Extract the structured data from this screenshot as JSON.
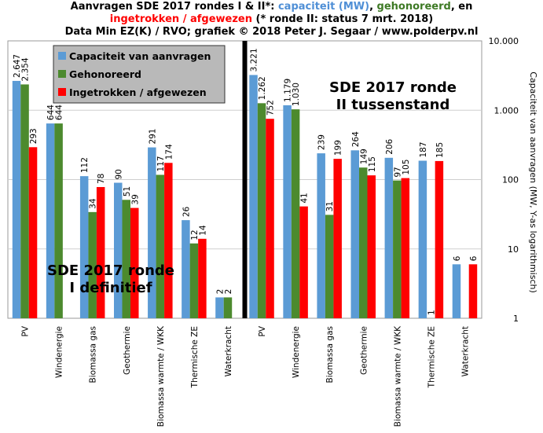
{
  "title": {
    "line1_a": "Aanvragen SDE 2017 rondes I & II*: ",
    "line1_capacity": "capaciteit (MW)",
    "line1_sep1": ", ",
    "line1_awarded": "gehonoreerd",
    "line1_sep2": ", en",
    "line2_withdrawn": "ingetrokken  / afgewezen",
    "line2_note": " (* ronde II: status 7 mrt. 2018)",
    "line3": "Data Min EZ(K) / RVO; grafiek © 2018 Peter J. Segaar / www.polderpv.nl"
  },
  "colors": {
    "capacity": "#5b9bd5",
    "awarded": "#4c8a2e",
    "withdrawn": "#ff0000",
    "legend_bg": "#b9b9b9",
    "legend_border": "#333333"
  },
  "chart_data": {
    "type": "bar",
    "y_scale": "log",
    "ylim": [
      1,
      10000
    ],
    "ylabel": "Capaciteit van aanvragen (MW, Y-as logarithmisch)",
    "y_ticks": [
      1,
      10,
      100,
      1000,
      10000
    ],
    "y_tick_labels": [
      "1",
      "10",
      "100",
      "1.000",
      "10.000"
    ],
    "legend": [
      "Capaciteit van aanvragen",
      "Gehonoreerd",
      "Ingetrokken / afgewezen"
    ],
    "legend_position": "top-left",
    "annotations": [
      "SDE 2017 ronde I definitief",
      "SDE 2017 ronde II tussenstand"
    ],
    "groups": [
      {
        "round": "I",
        "annotation_line1": "SDE 2017 ronde",
        "annotation_line2": "I definitief",
        "categories": [
          "PV",
          "Windenergie",
          "Biomassa gas",
          "Geothermie",
          "Biomassa warmte / WKK",
          "Thermische ZE",
          "Waterkracht"
        ],
        "series": [
          {
            "name": "Capaciteit van aanvragen",
            "values": [
              2647,
              644,
              112,
              90,
              291,
              26,
              2
            ],
            "labels": [
              "2.647",
              "644",
              "112",
              "90",
              "291",
              "26",
              "2"
            ]
          },
          {
            "name": "Gehonoreerd",
            "values": [
              2354,
              644,
              34,
              51,
              117,
              12,
              2
            ],
            "labels": [
              "2.354",
              "644",
              "34",
              "51",
              "117",
              "12",
              "2"
            ]
          },
          {
            "name": "Ingetrokken / afgewezen",
            "values": [
              293,
              null,
              78,
              39,
              174,
              14,
              null
            ],
            "labels": [
              "293",
              "",
              "78",
              "39",
              "174",
              "14",
              ""
            ]
          }
        ]
      },
      {
        "round": "II",
        "annotation_line1": "SDE 2017 ronde",
        "annotation_line2": "II tussenstand",
        "categories": [
          "PV",
          "Windenergie",
          "Biomassa gas",
          "Geothermie",
          "Biomassa warmte / WKK",
          "Thermische ZE",
          "Waterkracht"
        ],
        "series": [
          {
            "name": "Capaciteit van aanvragen",
            "values": [
              3221,
              1179,
              239,
              264,
              206,
              187,
              6
            ],
            "labels": [
              "3.221",
              "1.179",
              "239",
              "264",
              "206",
              "187",
              "6"
            ]
          },
          {
            "name": "Gehonoreerd",
            "values": [
              1262,
              1030,
              31,
              149,
              97,
              1,
              null
            ],
            "labels": [
              "1.262",
              "1.030",
              "31",
              "149",
              "97",
              "1",
              ""
            ]
          },
          {
            "name": "Ingetrokken / afgewezen",
            "values": [
              752,
              41,
              199,
              115,
              105,
              185,
              6
            ],
            "labels": [
              "752",
              "41",
              "199",
              "115",
              "105",
              "185",
              "6"
            ]
          }
        ]
      }
    ]
  }
}
